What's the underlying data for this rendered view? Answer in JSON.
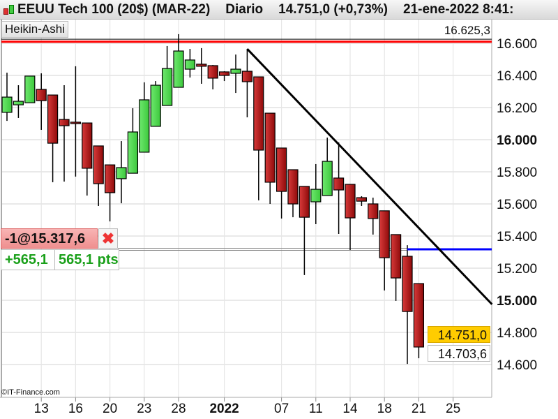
{
  "header": {
    "icon": "candlestick-chart-icon",
    "instrument": "EEUU Tech 100 (20$) (MAR-22)",
    "period": "Diario",
    "price_change": "14.751,0 (+0,73%)",
    "datetime": "21-ene-2022 8:41:"
  },
  "chart_type_label": "Heikin-Ashi",
  "high_label": "16.625,3",
  "order": {
    "entry": "-1@15.317,6",
    "close_icon": "close-x-icon",
    "pl_value": "+565,1",
    "pl_points": "565,1 pts"
  },
  "price_boxes": {
    "last": "14.751,0",
    "bid": "14.703,6"
  },
  "copyright": "©IT-Finance.com",
  "colors": {
    "up": "#4fd64f",
    "down": "#c02020",
    "resistance": "#ff0000",
    "order_line": "#0000ff",
    "trendline": "#000000",
    "last_price_box": "#ffcc00"
  },
  "chart_data": {
    "type": "candlestick",
    "style": "Heikin-Ashi",
    "ylim": [
      14550,
      16730
    ],
    "grid": true,
    "y_ticks": [
      {
        "label": "16.600",
        "value": 16600,
        "bold": false
      },
      {
        "label": "16.400",
        "value": 16400,
        "bold": false
      },
      {
        "label": "16.200",
        "value": 16200,
        "bold": false
      },
      {
        "label": "16.000",
        "value": 16000,
        "bold": true
      },
      {
        "label": "15.800",
        "value": 15800,
        "bold": false
      },
      {
        "label": "15.600",
        "value": 15600,
        "bold": false
      },
      {
        "label": "15.400",
        "value": 15400,
        "bold": false
      },
      {
        "label": "15.200",
        "value": 15200,
        "bold": false
      },
      {
        "label": "15.000",
        "value": 15000,
        "bold": true
      },
      {
        "label": "14.800",
        "value": 14800,
        "bold": false
      },
      {
        "label": "14.600",
        "value": 14600,
        "bold": false
      }
    ],
    "x_ticks": [
      {
        "label": "13",
        "bar": 3,
        "bold": false
      },
      {
        "label": "16",
        "bar": 6,
        "bold": false
      },
      {
        "label": "20",
        "bar": 9,
        "bold": false
      },
      {
        "label": "23",
        "bar": 12,
        "bold": false
      },
      {
        "label": "28",
        "bar": 15,
        "bold": false
      },
      {
        "label": "2022",
        "bar": 19,
        "bold": true
      },
      {
        "label": "07",
        "bar": 24,
        "bold": false
      },
      {
        "label": "11",
        "bar": 27,
        "bold": false
      },
      {
        "label": "14",
        "bar": 30,
        "bold": false
      },
      {
        "label": "18",
        "bar": 33,
        "bold": false
      },
      {
        "label": "21",
        "bar": 36,
        "bold": false
      },
      {
        "label": "25",
        "bar": 39,
        "bold": false
      }
    ],
    "candles": [
      [
        16170,
        16417,
        16117,
        16265
      ],
      [
        16217,
        16339,
        16135,
        16239
      ],
      [
        16230,
        16396,
        16230,
        16396
      ],
      [
        16313,
        16413,
        16061,
        16243
      ],
      [
        16278,
        16278,
        15735,
        15978
      ],
      [
        16126,
        16339,
        15739,
        16087
      ],
      [
        16109,
        16457,
        15770,
        16100
      ],
      [
        16104,
        16104,
        15652,
        15822
      ],
      [
        15961,
        15961,
        15587,
        15726
      ],
      [
        15843,
        15843,
        15491,
        15670
      ],
      [
        15757,
        15991,
        15604,
        15826
      ],
      [
        15791,
        16196,
        15791,
        16048
      ],
      [
        15922,
        16357,
        15922,
        16248
      ],
      [
        16083,
        16365,
        16083,
        16339
      ],
      [
        16213,
        16583,
        16213,
        16443
      ],
      [
        16326,
        16657,
        16326,
        16552
      ],
      [
        16439,
        16565,
        16387,
        16496
      ],
      [
        16470,
        16570,
        16348,
        16457
      ],
      [
        16461,
        16465,
        16313,
        16383
      ],
      [
        16422,
        16426,
        16365,
        16400
      ],
      [
        16413,
        16530,
        16291,
        16439
      ],
      [
        16426,
        16565,
        16139,
        16361
      ],
      [
        16391,
        16391,
        15622,
        15935
      ],
      [
        16165,
        16165,
        15600,
        15735
      ],
      [
        15948,
        15948,
        15509,
        15678
      ],
      [
        15813,
        15813,
        15517,
        15600
      ],
      [
        15709,
        15709,
        15157,
        15517
      ],
      [
        15613,
        15848,
        15474,
        15691
      ],
      [
        15652,
        16013,
        15652,
        15865
      ],
      [
        15761,
        15983,
        15413,
        15687
      ],
      [
        15722,
        15722,
        15313,
        15513
      ],
      [
        15639,
        15648,
        15587,
        15617
      ],
      [
        15600,
        15639,
        15409,
        15509
      ],
      [
        15557,
        15557,
        15061,
        15265
      ],
      [
        15409,
        15409,
        14996,
        15139
      ],
      [
        15274,
        15343,
        14604,
        14930
      ],
      [
        15104,
        15104,
        14639,
        14709
      ]
    ],
    "candle_format": [
      "open",
      "high",
      "low",
      "close"
    ],
    "lines": {
      "high_level": 16625.3,
      "resistance": 16610,
      "order_price": 15317.6,
      "trendline": {
        "from": {
          "bar": 21,
          "price": 16565
        },
        "to": {
          "bar": 42.4,
          "price": 14975
        }
      }
    }
  }
}
